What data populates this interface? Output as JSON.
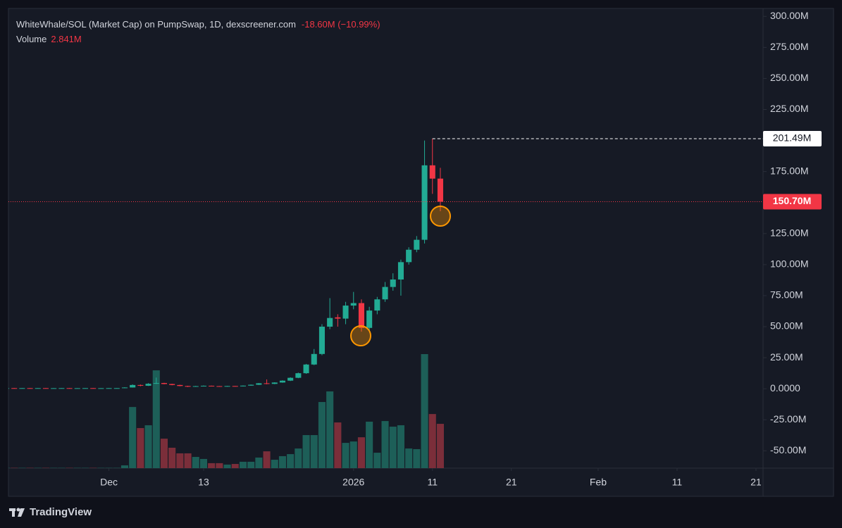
{
  "chart_data": {
    "type": "candlestick",
    "title": "WhiteWhale/SOL (Market Cap) on PumpSwap, 1D, dexscreener.com",
    "change_label": "-18.60M (−10.99%)",
    "volume_title": "Volume",
    "volume_value_label": "2.841M",
    "footer": "TradingView",
    "up_color": "#22ab94",
    "down_color": "#f23645",
    "volume_up_color": "#1d5f58",
    "volume_down_color": "#7b2e3a",
    "series": [
      {
        "open": [
          0.3,
          0.5,
          0.35,
          0.5,
          0.4,
          0.5,
          0.35,
          0.45,
          0.5,
          0.4,
          0.45,
          0.5,
          0.35,
          0.45,
          0.5,
          0.5,
          1.0,
          3.0,
          2.4,
          4.0,
          4.6,
          3.8,
          3.0,
          2.2,
          1.6,
          2.1,
          2.4,
          2.1,
          1.8,
          2.2,
          1.9,
          2.5,
          3.2,
          4.4,
          3.9,
          5.0,
          6.5,
          8.8,
          12.5,
          19.5,
          28,
          50,
          57.5,
          56.5,
          67,
          69,
          49,
          63,
          72,
          82,
          88,
          102,
          112,
          120,
          180,
          169.3
        ],
        "high": [
          0.6,
          0.6,
          0.55,
          0.6,
          0.55,
          0.6,
          0.5,
          0.55,
          0.6,
          0.5,
          0.55,
          0.6,
          0.5,
          0.55,
          0.6,
          1.2,
          3.5,
          3.4,
          4.5,
          9.0,
          4.8,
          4.0,
          3.2,
          2.4,
          2.3,
          2.6,
          2.5,
          2.2,
          2.3,
          2.3,
          2.6,
          3.4,
          4.6,
          7.5,
          5.2,
          6.8,
          9.2,
          13,
          20,
          32,
          52,
          73,
          60,
          70,
          78,
          72,
          66,
          74,
          86,
          93,
          104,
          114,
          123,
          200,
          201.49,
          178
        ],
        "low": [
          0.2,
          0.3,
          0.3,
          0.35,
          0.3,
          0.3,
          0.3,
          0.4,
          0.35,
          0.35,
          0.4,
          0.3,
          0.3,
          0.4,
          0.45,
          0.4,
          0.9,
          2.0,
          2.2,
          3.8,
          3.6,
          2.8,
          2.0,
          1.4,
          1.5,
          1.9,
          2.0,
          1.7,
          1.7,
          1.8,
          1.8,
          2.4,
          3.0,
          3.6,
          3.7,
          4.8,
          6.2,
          8.5,
          12,
          19,
          27,
          48,
          50,
          52,
          64,
          46,
          47,
          60,
          70,
          79,
          75,
          100,
          110,
          117,
          157,
          143
        ],
        "close": [
          0.5,
          0.35,
          0.5,
          0.4,
          0.5,
          0.35,
          0.45,
          0.5,
          0.4,
          0.45,
          0.5,
          0.35,
          0.45,
          0.5,
          0.5,
          1.0,
          3.0,
          2.4,
          4.0,
          4.6,
          3.8,
          3.0,
          2.2,
          1.6,
          2.1,
          2.4,
          2.1,
          1.8,
          2.2,
          1.9,
          2.5,
          3.2,
          4.4,
          3.9,
          5.0,
          6.5,
          8.8,
          12.5,
          19.5,
          28,
          50,
          57,
          56.5,
          67,
          69,
          49,
          63,
          72,
          82,
          88,
          102,
          112,
          120,
          180,
          169.3,
          150.7
        ],
        "volume": [
          0.02,
          0.02,
          0.02,
          0.02,
          0.02,
          0.02,
          0.02,
          0.02,
          0.02,
          0.02,
          0.02,
          0.02,
          0.02,
          0.02,
          0.02,
          0.18,
          3.92,
          2.57,
          2.75,
          6.27,
          1.89,
          1.31,
          0.95,
          0.95,
          0.72,
          0.59,
          0.32,
          0.32,
          0.23,
          0.27,
          0.41,
          0.41,
          0.68,
          1.08,
          0.54,
          0.77,
          0.9,
          1.26,
          2.12,
          2.12,
          4.24,
          4.92,
          2.93,
          1.62,
          1.71,
          1.98,
          2.98,
          0.99,
          3.02,
          2.66,
          2.75,
          1.26,
          1.22,
          7.31,
          3.47,
          2.841
        ]
      }
    ],
    "last_price": {
      "value": 150.7,
      "label": "150.70M"
    },
    "high_marker": {
      "value": 201.49,
      "label": "201.49M"
    },
    "xlim": [
      0.27,
      95.9
    ],
    "xticks": [
      {
        "value": 13,
        "label": "Dec"
      },
      {
        "value": 25,
        "label": "13"
      },
      {
        "value": 44,
        "label": "2026"
      },
      {
        "value": 54,
        "label": "11"
      },
      {
        "value": 64,
        "label": "21"
      },
      {
        "value": 75,
        "label": "Feb"
      },
      {
        "value": 85,
        "label": "11"
      },
      {
        "value": 95,
        "label": "21"
      }
    ],
    "ylim": [
      -64,
      306.4
    ],
    "yticks": [
      {
        "value": 300,
        "label": "300.00M"
      },
      {
        "value": 275,
        "label": "275.00M"
      },
      {
        "value": 250,
        "label": "250.00M"
      },
      {
        "value": 225,
        "label": "225.00M"
      },
      {
        "value": 175,
        "label": "175.00M"
      },
      {
        "value": 125,
        "label": "125.00M"
      },
      {
        "value": 100,
        "label": "100.00M"
      },
      {
        "value": 75,
        "label": "75.00M"
      },
      {
        "value": 50,
        "label": "50.00M"
      },
      {
        "value": 25,
        "label": "25.00M"
      },
      {
        "value": 0,
        "label": "0.0000"
      },
      {
        "value": -25,
        "label": "-25.00M"
      },
      {
        "value": -50,
        "label": "-50.00M"
      }
    ]
  }
}
